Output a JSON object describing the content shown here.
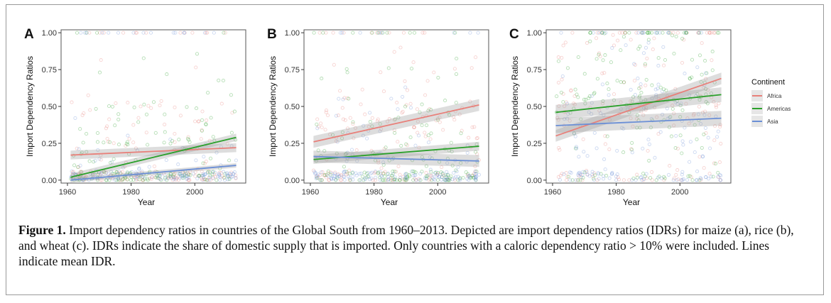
{
  "figure": {
    "caption_label": "Figure 1.",
    "caption_text": "Import dependency ratios in countries of the Global South from 1960–2013. Depicted are import dependency ratios (IDRs) for maize (a), rice (b), and wheat (c). IDRs indicate the share of domestic supply that is imported. Only countries with a caloric dependency ratio > 10% were included. Lines indicate mean IDR."
  },
  "legend": {
    "title": "Continent",
    "items": [
      {
        "label": "Africa",
        "color": "#e8807a"
      },
      {
        "label": "Americas",
        "color": "#2ca02c"
      },
      {
        "label": "Asia",
        "color": "#6b8fd6"
      }
    ]
  },
  "colors": {
    "Africa": "#e8807a",
    "Americas": "#2ca02c",
    "Asia": "#6b8fd6",
    "band": "#9e9e9e",
    "panel_background": "#ffffff",
    "axis": "#333333"
  },
  "chart_data": [
    {
      "type": "scatter",
      "panel_label": "A",
      "xlabel": "Year",
      "ylabel": "Import Dependency Ratios",
      "xlim": [
        1958,
        2016
      ],
      "ylim": [
        -0.02,
        1.02
      ],
      "x_ticks": [
        1960,
        1980,
        2000
      ],
      "y_ticks": [
        0.0,
        0.25,
        0.5,
        0.75,
        1.0
      ],
      "y_tick_labels": [
        "0.00",
        "0.25",
        "0.50",
        "0.75",
        "1.00"
      ],
      "grid": false,
      "trend_lines": [
        {
          "name": "Africa",
          "x": [
            1961,
            2013
          ],
          "y": [
            0.17,
            0.22
          ],
          "band": 0.03
        },
        {
          "name": "Americas",
          "x": [
            1961,
            2013
          ],
          "y": [
            0.02,
            0.29
          ],
          "band": 0.025
        },
        {
          "name": "Asia",
          "x": [
            1961,
            2013
          ],
          "y": [
            0.0,
            0.1
          ],
          "band": 0.015
        }
      ],
      "scatter_profile": {
        "Africa": {
          "low_share": 0.55,
          "mid": 0.25,
          "spread": 0.9
        },
        "Americas": {
          "low_share": 0.45,
          "mid": 0.25,
          "spread": 0.7
        },
        "Asia": {
          "low_share": 0.75,
          "mid": 0.1,
          "spread": 0.4
        }
      }
    },
    {
      "type": "scatter",
      "panel_label": "B",
      "xlabel": "Year",
      "ylabel": "Import Dependency Ratios",
      "xlim": [
        1958,
        2016
      ],
      "ylim": [
        -0.02,
        1.02
      ],
      "x_ticks": [
        1960,
        1980,
        2000
      ],
      "y_ticks": [
        0.0,
        0.25,
        0.5,
        0.75,
        1.0
      ],
      "y_tick_labels": [
        "0.00",
        "0.25",
        "0.50",
        "0.75",
        "1.00"
      ],
      "grid": false,
      "trend_lines": [
        {
          "name": "Africa",
          "x": [
            1961,
            2013
          ],
          "y": [
            0.26,
            0.51
          ],
          "band": 0.04
        },
        {
          "name": "Americas",
          "x": [
            1961,
            2013
          ],
          "y": [
            0.14,
            0.23
          ],
          "band": 0.03
        },
        {
          "name": "Asia",
          "x": [
            1961,
            2013
          ],
          "y": [
            0.16,
            0.13
          ],
          "band": 0.04
        }
      ],
      "scatter_profile": {
        "Africa": {
          "low_share": 0.2,
          "mid": 0.4,
          "spread": 1.0
        },
        "Americas": {
          "low_share": 0.35,
          "mid": 0.2,
          "spread": 0.8
        },
        "Asia": {
          "low_share": 0.65,
          "mid": 0.15,
          "spread": 0.6
        }
      }
    },
    {
      "type": "scatter",
      "panel_label": "C",
      "xlabel": "Year",
      "ylabel": "Import Dependency Ratios",
      "xlim": [
        1958,
        2016
      ],
      "ylim": [
        -0.02,
        1.02
      ],
      "x_ticks": [
        1960,
        1980,
        2000
      ],
      "y_ticks": [
        0.0,
        0.25,
        0.5,
        0.75,
        1.0
      ],
      "y_tick_labels": [
        "0.00",
        "0.25",
        "0.50",
        "0.75",
        "1.00"
      ],
      "grid": false,
      "trend_lines": [
        {
          "name": "Africa",
          "x": [
            1961,
            2013
          ],
          "y": [
            0.3,
            0.69
          ],
          "band": 0.04
        },
        {
          "name": "Americas",
          "x": [
            1961,
            2013
          ],
          "y": [
            0.46,
            0.58
          ],
          "band": 0.05
        },
        {
          "name": "Asia",
          "x": [
            1961,
            2013
          ],
          "y": [
            0.37,
            0.42
          ],
          "band": 0.05
        }
      ],
      "scatter_profile": {
        "Africa": {
          "low_share": 0.1,
          "mid": 0.5,
          "spread": 1.0
        },
        "Americas": {
          "low_share": 0.1,
          "mid": 0.55,
          "spread": 1.0
        },
        "Asia": {
          "low_share": 0.3,
          "mid": 0.4,
          "spread": 1.0
        }
      }
    }
  ]
}
